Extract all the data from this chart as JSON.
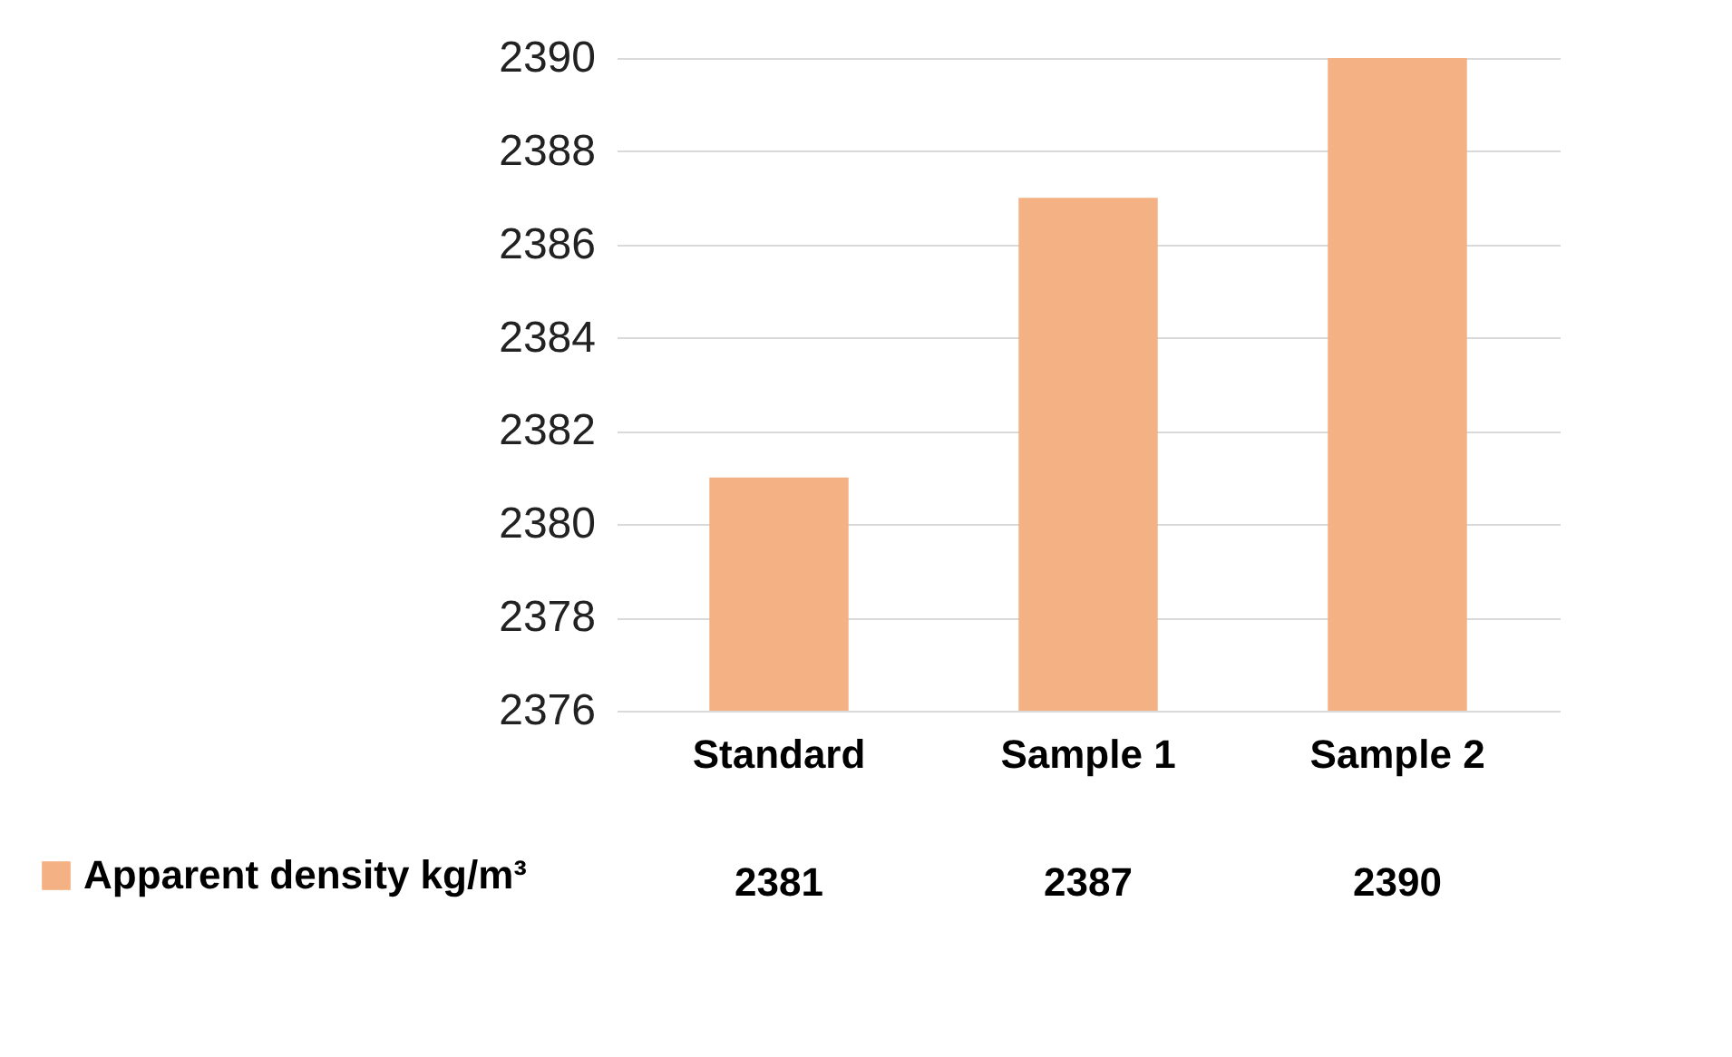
{
  "chart_data": {
    "type": "bar",
    "categories": [
      "Standard",
      "Sample 1",
      "Sample 2"
    ],
    "series": [
      {
        "name": "Apparent density kg/m³",
        "color": "#f4b183",
        "values": [
          2381,
          2387,
          2390
        ]
      }
    ],
    "ylim": [
      2376,
      2390
    ],
    "yticks": [
      2376,
      2378,
      2380,
      2382,
      2384,
      2386,
      2388,
      2390
    ],
    "grid": "y",
    "legend": "bottom left",
    "data_labels": true
  }
}
